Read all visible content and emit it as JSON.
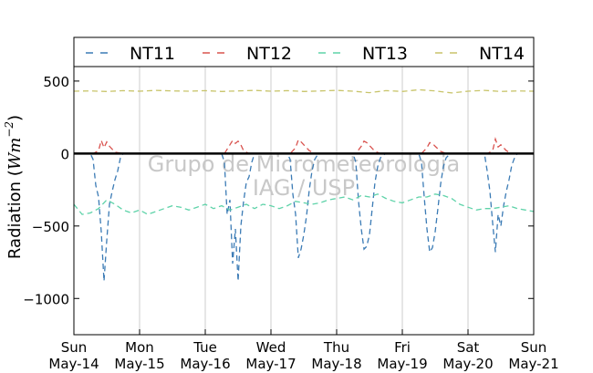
{
  "chart_data": {
    "type": "line",
    "ylabel_main": "Radiation (",
    "ylabel_unit": "Wm",
    "ylabel_exp": "−2",
    "ylabel_close": ")",
    "ylim": [
      -1250,
      600
    ],
    "yticks": [
      500,
      0,
      -500,
      -1000
    ],
    "ytick_labels": [
      "500",
      "0",
      "−500",
      "−1000"
    ],
    "xlim": [
      "2015-05-14",
      "2015-05-21"
    ],
    "xticks": [
      {
        "date": "2015-05-14",
        "day": "Sun",
        "label": "May-14"
      },
      {
        "date": "2015-05-15",
        "day": "Mon",
        "label": "May-15"
      },
      {
        "date": "2015-05-16",
        "day": "Tue",
        "label": "May-16"
      },
      {
        "date": "2015-05-17",
        "day": "Wed",
        "label": "May-17"
      },
      {
        "date": "2015-05-18",
        "day": "Thu",
        "label": "May-18"
      },
      {
        "date": "2015-05-19",
        "day": "Fri",
        "label": "May-19"
      },
      {
        "date": "2015-05-20",
        "day": "Sat",
        "label": "May-20"
      },
      {
        "date": "2015-05-21",
        "day": "Sun",
        "label": "May-21"
      }
    ],
    "grid": "vertical",
    "zero_line": true,
    "legend_position": "top",
    "watermark": [
      "Grupo de Micrometeorologia",
      "IAG / USP"
    ],
    "series": [
      {
        "name": "NT11",
        "color": "#3b7bb5",
        "x": [
          "2015-05-14 00:00",
          "2015-05-14 06:00",
          "2015-05-14 07:00",
          "2015-05-14 08:00",
          "2015-05-14 09:00",
          "2015-05-14 10:00",
          "2015-05-14 11:00",
          "2015-05-14 12:00",
          "2015-05-14 13:00",
          "2015-05-14 14:00",
          "2015-05-14 15:00",
          "2015-05-14 16:00",
          "2015-05-14 17:00",
          "2015-05-14 18:00",
          "2015-05-15 00:00",
          "2015-05-16 00:00",
          "2015-05-16 06:00",
          "2015-05-16 07:00",
          "2015-05-16 08:00",
          "2015-05-16 09:00",
          "2015-05-16 10:00",
          "2015-05-16 11:00",
          "2015-05-16 12:00",
          "2015-05-16 13:00",
          "2015-05-16 14:00",
          "2015-05-16 15:00",
          "2015-05-16 16:00",
          "2015-05-16 17:00",
          "2015-05-16 18:00",
          "2015-05-17 06:00",
          "2015-05-17 07:00",
          "2015-05-17 08:00",
          "2015-05-17 09:00",
          "2015-05-17 10:00",
          "2015-05-17 11:00",
          "2015-05-17 12:00",
          "2015-05-17 13:00",
          "2015-05-17 14:00",
          "2015-05-17 15:00",
          "2015-05-17 16:00",
          "2015-05-17 17:00",
          "2015-05-17 18:00",
          "2015-05-18 06:00",
          "2015-05-18 07:00",
          "2015-05-18 08:00",
          "2015-05-18 09:00",
          "2015-05-18 10:00",
          "2015-05-18 11:00",
          "2015-05-18 12:00",
          "2015-05-18 13:00",
          "2015-05-18 14:00",
          "2015-05-18 15:00",
          "2015-05-18 16:00",
          "2015-05-18 17:00",
          "2015-05-18 18:00",
          "2015-05-19 06:00",
          "2015-05-19 07:00",
          "2015-05-19 08:00",
          "2015-05-19 09:00",
          "2015-05-19 10:00",
          "2015-05-19 11:00",
          "2015-05-19 12:00",
          "2015-05-19 13:00",
          "2015-05-19 14:00",
          "2015-05-19 15:00",
          "2015-05-19 16:00",
          "2015-05-19 17:00",
          "2015-05-19 18:00",
          "2015-05-20 06:00",
          "2015-05-20 07:00",
          "2015-05-20 08:00",
          "2015-05-20 09:00",
          "2015-05-20 10:00",
          "2015-05-20 11:00",
          "2015-05-20 12:00",
          "2015-05-20 13:00",
          "2015-05-20 14:00",
          "2015-05-20 15:00",
          "2015-05-20 16:00",
          "2015-05-20 17:00",
          "2015-05-20 18:00"
        ],
        "y": [
          0,
          0,
          -40,
          -220,
          -300,
          -540,
          -880,
          -600,
          -350,
          -260,
          -180,
          -120,
          -30,
          0,
          0,
          0,
          0,
          -60,
          -420,
          -320,
          -760,
          -520,
          -880,
          -500,
          -330,
          -200,
          -160,
          -60,
          0,
          0,
          -40,
          -280,
          -420,
          -720,
          -660,
          -560,
          -430,
          -250,
          -120,
          -40,
          -10,
          0,
          0,
          -60,
          -330,
          -520,
          -660,
          -640,
          -560,
          -380,
          -200,
          -90,
          -30,
          -10,
          0,
          0,
          -60,
          -300,
          -520,
          -680,
          -650,
          -540,
          -380,
          -210,
          -90,
          -30,
          -10,
          0,
          0,
          -120,
          -260,
          -480,
          -680,
          -420,
          -500,
          -360,
          -260,
          -180,
          -80,
          -30,
          0
        ]
      },
      {
        "name": "NT12",
        "color": "#d9534f",
        "x": [
          "2015-05-14 00:00",
          "2015-05-14 07:00",
          "2015-05-14 09:00",
          "2015-05-14 10:00",
          "2015-05-14 11:00",
          "2015-05-14 12:00",
          "2015-05-14 13:00",
          "2015-05-14 15:00",
          "2015-05-14 18:00",
          "2015-05-16 07:00",
          "2015-05-16 09:00",
          "2015-05-16 10:00",
          "2015-05-16 11:00",
          "2015-05-16 12:00",
          "2015-05-16 13:00",
          "2015-05-16 14:00",
          "2015-05-16 16:00",
          "2015-05-17 07:00",
          "2015-05-17 09:00",
          "2015-05-17 10:00",
          "2015-05-17 11:00",
          "2015-05-17 12:00",
          "2015-05-17 14:00",
          "2015-05-17 16:00",
          "2015-05-18 07:00",
          "2015-05-18 09:00",
          "2015-05-18 10:00",
          "2015-05-18 11:00",
          "2015-05-18 12:00",
          "2015-05-18 14:00",
          "2015-05-18 16:00",
          "2015-05-19 07:00",
          "2015-05-19 09:00",
          "2015-05-19 10:00",
          "2015-05-19 11:00",
          "2015-05-19 12:00",
          "2015-05-19 14:00",
          "2015-05-19 16:00",
          "2015-05-20 07:00",
          "2015-05-20 09:00",
          "2015-05-20 10:00",
          "2015-05-20 11:00",
          "2015-05-20 12:00",
          "2015-05-20 14:00",
          "2015-05-20 16:00",
          "2015-05-21 00:00"
        ],
        "y": [
          0,
          0,
          20,
          90,
          40,
          80,
          50,
          10,
          0,
          0,
          60,
          90,
          70,
          85,
          60,
          20,
          0,
          0,
          40,
          95,
          80,
          60,
          20,
          0,
          0,
          50,
          85,
          75,
          55,
          15,
          0,
          0,
          40,
          75,
          70,
          50,
          15,
          0,
          0,
          20,
          100,
          45,
          60,
          20,
          0,
          0
        ]
      },
      {
        "name": "NT13",
        "color": "#5fd3a9",
        "x": [
          "2015-05-14 00:00",
          "2015-05-14 03:00",
          "2015-05-14 06:00",
          "2015-05-14 09:00",
          "2015-05-14 12:00",
          "2015-05-14 15:00",
          "2015-05-14 18:00",
          "2015-05-14 21:00",
          "2015-05-15 00:00",
          "2015-05-15 03:00",
          "2015-05-15 06:00",
          "2015-05-15 09:00",
          "2015-05-15 12:00",
          "2015-05-15 15:00",
          "2015-05-15 18:00",
          "2015-05-15 21:00",
          "2015-05-16 00:00",
          "2015-05-16 03:00",
          "2015-05-16 06:00",
          "2015-05-16 09:00",
          "2015-05-16 12:00",
          "2015-05-16 15:00",
          "2015-05-16 18:00",
          "2015-05-16 21:00",
          "2015-05-17 00:00",
          "2015-05-17 03:00",
          "2015-05-17 06:00",
          "2015-05-17 09:00",
          "2015-05-17 12:00",
          "2015-05-17 15:00",
          "2015-05-17 18:00",
          "2015-05-17 21:00",
          "2015-05-18 00:00",
          "2015-05-18 03:00",
          "2015-05-18 06:00",
          "2015-05-18 09:00",
          "2015-05-18 12:00",
          "2015-05-18 15:00",
          "2015-05-18 18:00",
          "2015-05-18 21:00",
          "2015-05-19 00:00",
          "2015-05-19 03:00",
          "2015-05-19 06:00",
          "2015-05-19 09:00",
          "2015-05-19 12:00",
          "2015-05-19 15:00",
          "2015-05-19 18:00",
          "2015-05-19 21:00",
          "2015-05-20 00:00",
          "2015-05-20 03:00",
          "2015-05-20 06:00",
          "2015-05-20 09:00",
          "2015-05-20 12:00",
          "2015-05-20 15:00",
          "2015-05-20 18:00",
          "2015-05-20 21:00",
          "2015-05-21 00:00"
        ],
        "y": [
          -350,
          -420,
          -410,
          -380,
          -320,
          -350,
          -390,
          -410,
          -390,
          -420,
          -400,
          -380,
          -360,
          -370,
          -390,
          -370,
          -350,
          -380,
          -360,
          -390,
          -370,
          -350,
          -380,
          -350,
          -360,
          -380,
          -360,
          -330,
          -340,
          -350,
          -340,
          -320,
          -310,
          -300,
          -320,
          -290,
          -300,
          -280,
          -310,
          -330,
          -340,
          -320,
          -300,
          -300,
          -280,
          -290,
          -310,
          -350,
          -370,
          -390,
          -380,
          -380,
          -370,
          -360,
          -380,
          -390,
          -400
        ]
      },
      {
        "name": "NT14",
        "color": "#c8c46a",
        "x": [
          "2015-05-14 00:00",
          "2015-05-14 06:00",
          "2015-05-14 12:00",
          "2015-05-14 18:00",
          "2015-05-15 00:00",
          "2015-05-15 06:00",
          "2015-05-15 12:00",
          "2015-05-15 18:00",
          "2015-05-16 00:00",
          "2015-05-16 06:00",
          "2015-05-16 12:00",
          "2015-05-16 18:00",
          "2015-05-17 00:00",
          "2015-05-17 06:00",
          "2015-05-17 12:00",
          "2015-05-17 18:00",
          "2015-05-18 00:00",
          "2015-05-18 06:00",
          "2015-05-18 12:00",
          "2015-05-18 18:00",
          "2015-05-19 00:00",
          "2015-05-19 06:00",
          "2015-05-19 12:00",
          "2015-05-19 18:00",
          "2015-05-20 00:00",
          "2015-05-20 06:00",
          "2015-05-20 12:00",
          "2015-05-20 18:00",
          "2015-05-21 00:00"
        ],
        "y": [
          430,
          432,
          428,
          434,
          430,
          436,
          432,
          430,
          434,
          428,
          432,
          436,
          430,
          434,
          428,
          432,
          436,
          430,
          420,
          434,
          428,
          440,
          432,
          418,
          430,
          436,
          428,
          432,
          430
        ]
      }
    ]
  }
}
